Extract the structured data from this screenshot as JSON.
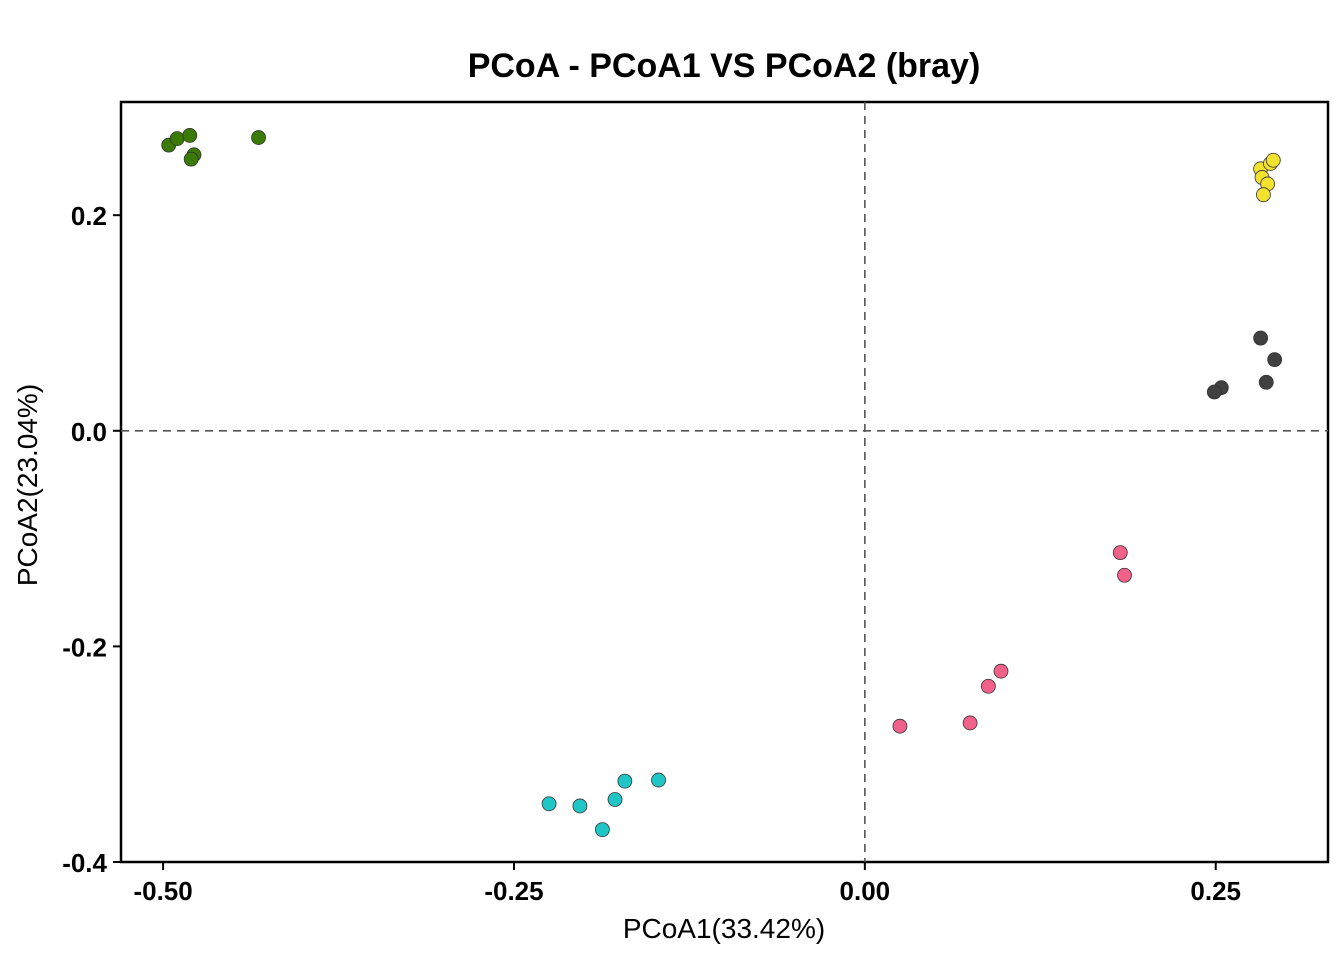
{
  "chart_data": {
    "type": "scatter",
    "title": "PCoA - PCoA1 VS PCoA2 (bray)",
    "xlabel": "PCoA1(33.42%)",
    "ylabel": "PCoA2(23.04%)",
    "xlim": [
      -0.53,
      0.33
    ],
    "ylim": [
      -0.4,
      0.305
    ],
    "xticks": [
      -0.5,
      -0.25,
      0.0,
      0.25
    ],
    "xtick_labels": [
      "-0.50",
      "-0.25",
      "0.00",
      "0.25"
    ],
    "yticks": [
      -0.4,
      -0.2,
      0.0,
      0.2
    ],
    "ytick_labels": [
      "-0.4",
      "-0.2",
      "0.0",
      "0.2"
    ],
    "reference_lines": {
      "x": 0.0,
      "y": 0.0,
      "style": "dashed"
    },
    "grid": false,
    "legend": "none",
    "series": [
      {
        "color": "#3a7a05",
        "points": [
          [
            -0.496,
            0.265
          ],
          [
            -0.49,
            0.271
          ],
          [
            -0.481,
            0.274
          ],
          [
            -0.478,
            0.256
          ],
          [
            -0.48,
            0.252
          ],
          [
            -0.432,
            0.272
          ]
        ]
      },
      {
        "color": "#f2e12e",
        "points": [
          [
            0.282,
            0.243
          ],
          [
            0.289,
            0.248
          ],
          [
            0.291,
            0.251
          ],
          [
            0.283,
            0.235
          ],
          [
            0.287,
            0.229
          ],
          [
            0.284,
            0.219
          ]
        ]
      },
      {
        "color": "#404040",
        "points": [
          [
            0.282,
            0.086
          ],
          [
            0.292,
            0.066
          ],
          [
            0.286,
            0.045
          ],
          [
            0.254,
            0.04
          ],
          [
            0.249,
            0.036
          ]
        ]
      },
      {
        "color": "#f0628a",
        "points": [
          [
            0.182,
            -0.113
          ],
          [
            0.185,
            -0.134
          ],
          [
            0.097,
            -0.223
          ],
          [
            0.088,
            -0.237
          ],
          [
            0.075,
            -0.271
          ],
          [
            0.025,
            -0.274
          ]
        ]
      },
      {
        "color": "#20c5c5",
        "points": [
          [
            -0.147,
            -0.324
          ],
          [
            -0.171,
            -0.325
          ],
          [
            -0.178,
            -0.342
          ],
          [
            -0.225,
            -0.346
          ],
          [
            -0.203,
            -0.348
          ],
          [
            -0.187,
            -0.37
          ]
        ]
      }
    ]
  }
}
